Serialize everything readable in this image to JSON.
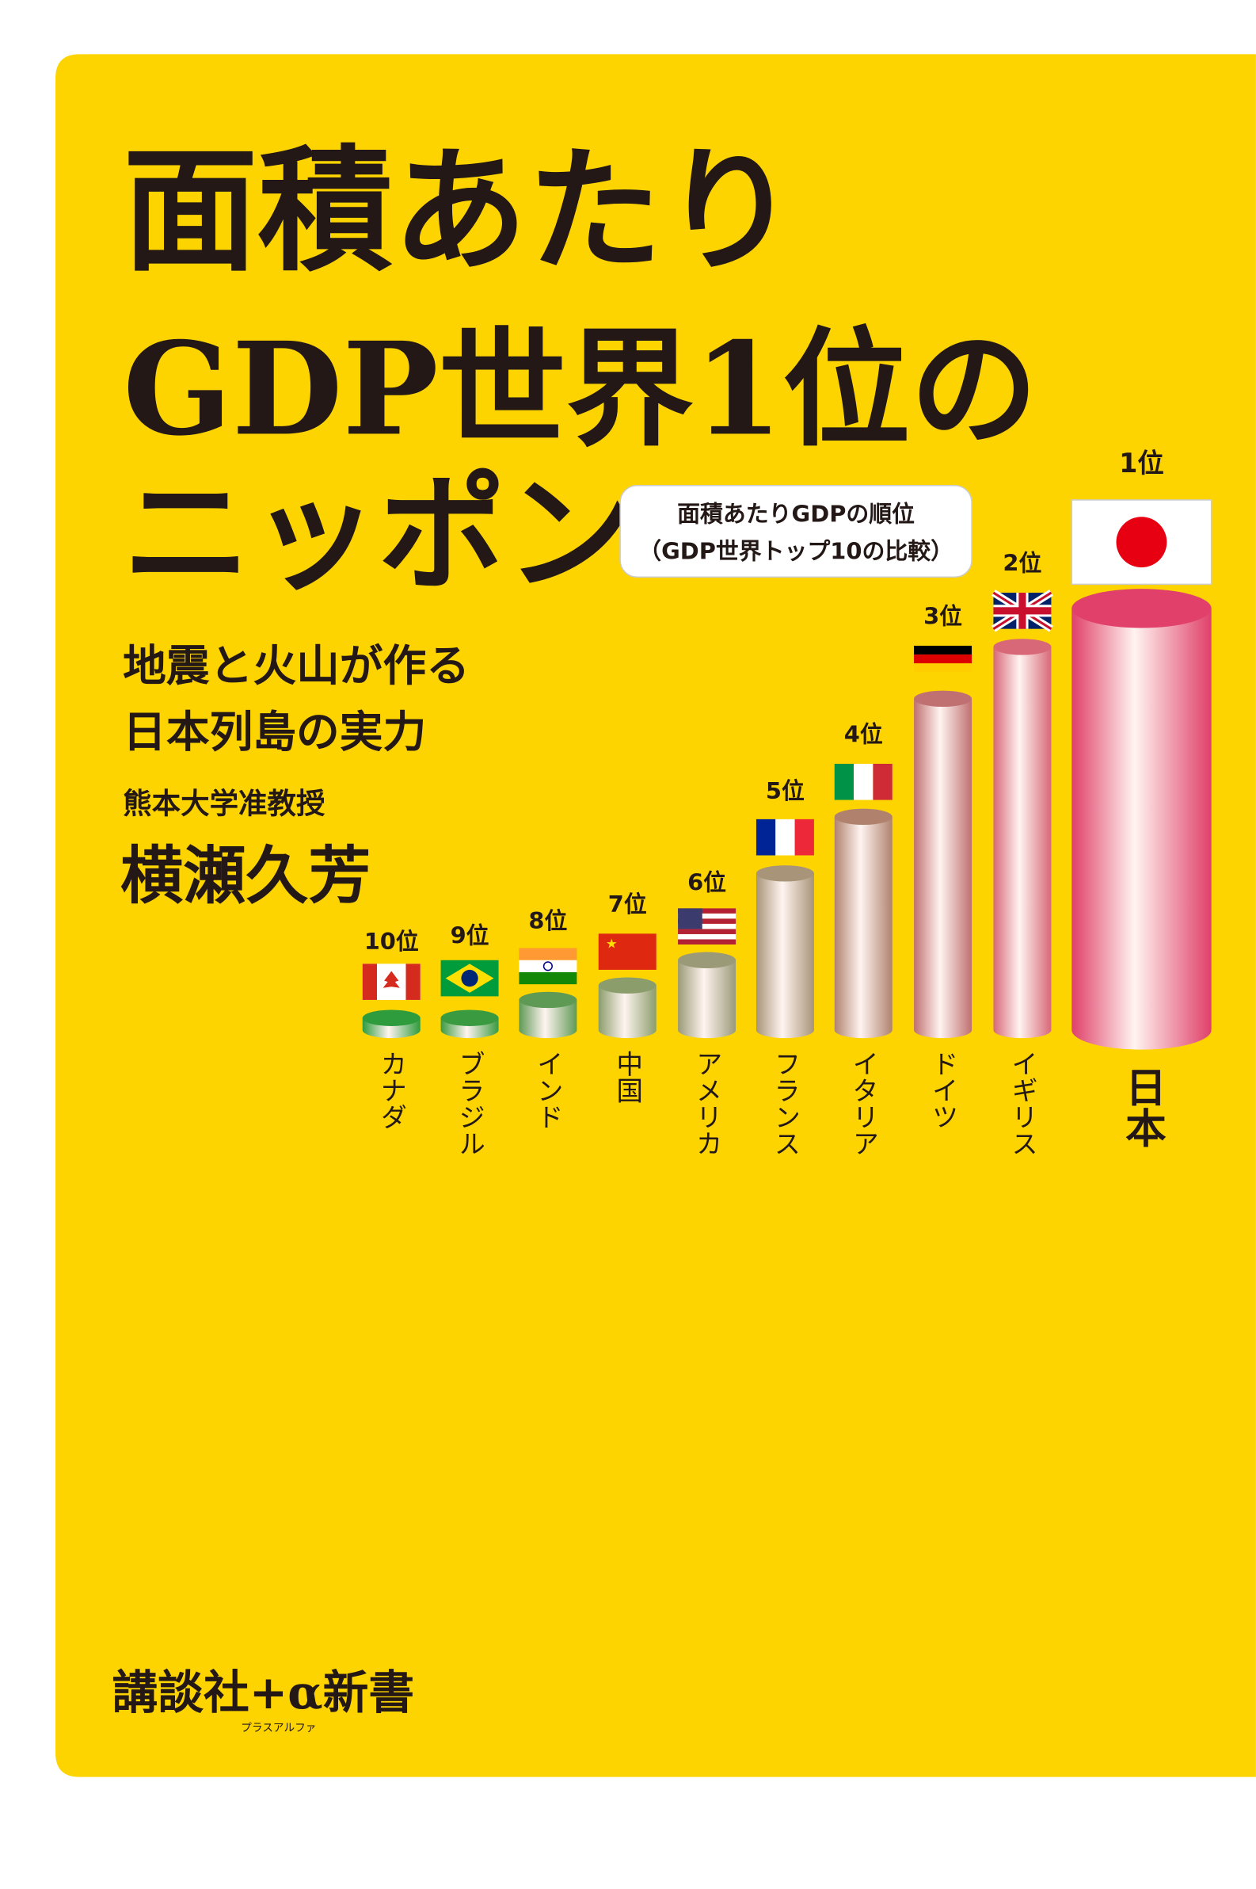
{
  "title": {
    "lines": [
      "面積あたり",
      "GDP世界1位の",
      "ニッポン"
    ]
  },
  "callout": {
    "lines": [
      "面積あたりGDPの順位",
      "（GDP世界トップ10の比較）"
    ]
  },
  "subtitle": {
    "lines": [
      "地震と火山が作る",
      "日本列島の実力"
    ]
  },
  "author": {
    "affiliation": "熊本大学准教授",
    "name": "横瀬久芳"
  },
  "ranking": {
    "items": [
      {
        "rank": "10位",
        "country": "カナダ"
      },
      {
        "rank": "9位",
        "country": "ブラジル"
      },
      {
        "rank": "8位",
        "country": "インド"
      },
      {
        "rank": "7位",
        "country": "中国"
      },
      {
        "rank": "6位",
        "country": "アメリカ"
      },
      {
        "rank": "5位",
        "country": "フランス"
      },
      {
        "rank": "4位",
        "country": "イタリア"
      },
      {
        "rank": "3位",
        "country": "ドイツ"
      },
      {
        "rank": "2位",
        "country": "イギリス"
      },
      {
        "rank": "1位",
        "country": "日本"
      }
    ]
  },
  "publisher": {
    "name": "講談社+α新書",
    "reading": "プラスアルファ"
  }
}
